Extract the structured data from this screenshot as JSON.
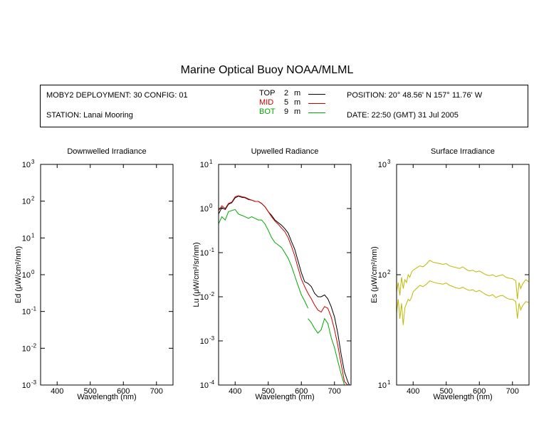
{
  "title": "Marine Optical Buoy NOAA/MLML",
  "info": {
    "deployment": "MOBY2 DEPLOYMENT: 30 CONFIG: 01",
    "station": "STATION: Lanai Mooring",
    "position": "POSITION: 20° 48.56' N   157° 11.76' W",
    "date": "DATE: 22:50 (GMT) 31 Jul 2005",
    "legend": [
      {
        "name": "TOP",
        "depth": "2",
        "unit": "m",
        "color": "#000000"
      },
      {
        "name": "MID",
        "depth": "5",
        "unit": "m",
        "color": "#cc0000"
      },
      {
        "name": "BOT",
        "depth": "9",
        "unit": "m",
        "color": "#00aa00"
      }
    ]
  },
  "chart_data": [
    {
      "type": "line",
      "title": "Downwelled Irradiance",
      "xlabel": "Wavelength (nm)",
      "ylabel": "Ed  (μW/cm²/nm)",
      "xlim": [
        350,
        750
      ],
      "ylim": [
        0.001,
        1000
      ],
      "yscale": "log",
      "xticks": [
        400,
        500,
        600,
        700
      ],
      "yticks": [
        {
          "v": 0.001,
          "base": "10",
          "exp": "-3"
        },
        {
          "v": 0.01,
          "base": "10",
          "exp": "-2"
        },
        {
          "v": 0.1,
          "base": "10",
          "exp": "-1"
        },
        {
          "v": 1,
          "base": "10",
          "exp": "0"
        },
        {
          "v": 10,
          "base": "10",
          "exp": "1"
        },
        {
          "v": 100,
          "base": "10",
          "exp": "2"
        },
        {
          "v": 1000,
          "base": "10",
          "exp": "3"
        }
      ],
      "series": []
    },
    {
      "type": "line",
      "title": "Upwelled Radiance",
      "xlabel": "Wavelength (nm)",
      "ylabel": "Lu  (μW/cm²/sr/nm)",
      "xlim": [
        350,
        750
      ],
      "ylim": [
        0.0001,
        10
      ],
      "yscale": "log",
      "xticks": [
        400,
        500,
        600,
        700
      ],
      "yticks": [
        {
          "v": 0.0001,
          "base": "10",
          "exp": "-4"
        },
        {
          "v": 0.001,
          "base": "10",
          "exp": "-3"
        },
        {
          "v": 0.01,
          "base": "10",
          "exp": "-2"
        },
        {
          "v": 0.1,
          "base": "10",
          "exp": "-1"
        },
        {
          "v": 1,
          "base": "10",
          "exp": "0"
        },
        {
          "v": 10,
          "base": "10",
          "exp": "1"
        }
      ],
      "series": [
        {
          "color": "#000000",
          "x": [
            350,
            360,
            370,
            380,
            390,
            400,
            410,
            420,
            430,
            440,
            450,
            460,
            470,
            480,
            490,
            500,
            510,
            520,
            530,
            540,
            550,
            560,
            570,
            580,
            590,
            600,
            610,
            620,
            630,
            640,
            650,
            660,
            670,
            680,
            690,
            700,
            710,
            720,
            730,
            740,
            745
          ],
          "y": [
            0.75,
            1.05,
            0.95,
            1.25,
            1.35,
            1.75,
            1.9,
            1.8,
            1.75,
            1.6,
            1.55,
            1.45,
            1.45,
            1.3,
            1.1,
            0.85,
            0.7,
            0.55,
            0.48,
            0.42,
            0.35,
            0.28,
            0.18,
            0.12,
            0.065,
            0.035,
            0.022,
            0.02,
            0.017,
            0.012,
            0.01,
            0.01,
            0.011,
            0.009,
            0.006,
            0.0035,
            0.0015,
            0.0005,
            0.0002,
            0.00012,
            0.0001
          ]
        },
        {
          "color": "#cc0000",
          "x": [
            350,
            360,
            370,
            380,
            390,
            400,
            410,
            420,
            430,
            440,
            450,
            460,
            470,
            480,
            490,
            500,
            510,
            520,
            530,
            540,
            550,
            560,
            570,
            580,
            590,
            600,
            610,
            620,
            630,
            640,
            650,
            660,
            670,
            680,
            690,
            700,
            710,
            720,
            730,
            740
          ],
          "y": [
            0.9,
            1.15,
            1.0,
            1.3,
            1.4,
            1.85,
            1.95,
            1.85,
            1.8,
            1.65,
            1.55,
            1.45,
            1.45,
            1.3,
            1.1,
            0.85,
            0.65,
            0.52,
            0.44,
            0.36,
            0.3,
            0.22,
            0.14,
            0.085,
            0.045,
            0.025,
            0.017,
            0.012,
            0.009,
            0.0065,
            0.005,
            0.0045,
            0.006,
            0.0055,
            0.0035,
            0.0018,
            0.0008,
            0.0003,
            0.00012,
            0.0001
          ]
        },
        {
          "color": "#00aa00",
          "x": [
            350,
            360,
            370,
            380,
            390,
            400,
            410,
            420,
            430,
            440,
            450,
            460,
            470,
            480,
            490,
            500,
            510,
            520,
            530,
            540,
            550,
            560,
            570,
            580,
            590,
            600,
            610,
            620
          ],
          "y": [
            0.45,
            0.65,
            0.55,
            0.85,
            0.9,
            0.95,
            0.75,
            0.7,
            0.65,
            0.6,
            0.65,
            0.6,
            0.55,
            0.55,
            0.45,
            0.32,
            0.22,
            0.17,
            0.15,
            0.13,
            0.1,
            0.075,
            0.05,
            0.03,
            0.018,
            0.011,
            0.008,
            0.0055
          ]
        },
        {
          "color": "#00aa00",
          "x": [
            620,
            630,
            640,
            650,
            660,
            670,
            680,
            690,
            700,
            710,
            720,
            730,
            740
          ],
          "y": [
            0.0032,
            0.0026,
            0.0019,
            0.0015,
            0.0018,
            0.0032,
            0.0025,
            0.0012,
            0.0007,
            0.00035,
            0.00018,
            0.0001,
            0.0001
          ]
        }
      ]
    },
    {
      "type": "line",
      "title": "Surface Irradiance",
      "xlabel": "Wavelength (nm)",
      "ylabel": "Es  (μW/cm²/nm)",
      "xlim": [
        350,
        750
      ],
      "ylim": [
        10,
        1000
      ],
      "yscale": "log",
      "xticks": [
        400,
        500,
        600,
        700
      ],
      "yticks": [
        {
          "v": 10,
          "base": "10",
          "exp": "1"
        },
        {
          "v": 100,
          "base": "10",
          "exp": "2"
        },
        {
          "v": 1000,
          "base": "10",
          "exp": "3"
        }
      ],
      "series": [
        {
          "color": "#c0b800",
          "x": [
            350,
            355,
            360,
            365,
            370,
            375,
            380,
            385,
            390,
            395,
            400,
            410,
            420,
            430,
            440,
            450,
            460,
            470,
            480,
            490,
            500,
            510,
            520,
            530,
            540,
            550,
            560,
            570,
            580,
            590,
            600,
            610,
            620,
            630,
            640,
            650,
            660,
            670,
            680,
            690,
            700,
            710,
            715,
            720,
            725,
            730,
            740,
            750
          ],
          "y": [
            70,
            85,
            65,
            95,
            75,
            90,
            85,
            100,
            95,
            105,
            110,
            115,
            120,
            118,
            125,
            135,
            130,
            128,
            126,
            124,
            126,
            120,
            118,
            116,
            114,
            118,
            112,
            108,
            110,
            106,
            108,
            104,
            100,
            98,
            100,
            96,
            98,
            100,
            95,
            93,
            92,
            88,
            60,
            85,
            75,
            82,
            90,
            86
          ]
        },
        {
          "color": "#c0b800",
          "x": [
            350,
            355,
            360,
            365,
            370,
            375,
            380,
            385,
            390,
            395,
            400,
            410,
            420,
            430,
            440,
            450,
            460,
            470,
            480,
            490,
            500,
            510,
            520,
            530,
            540,
            550,
            560,
            570,
            580,
            590,
            600,
            610,
            620,
            630,
            640,
            650,
            660,
            670,
            680,
            690,
            700,
            710,
            715,
            720,
            725,
            730,
            740,
            750
          ],
          "y": [
            45,
            60,
            40,
            55,
            35,
            50,
            55,
            60,
            58,
            62,
            70,
            75,
            80,
            78,
            82,
            88,
            86,
            84,
            83,
            82,
            84,
            80,
            78,
            76,
            75,
            77,
            74,
            72,
            73,
            70,
            72,
            69,
            66,
            64,
            66,
            62,
            64,
            65,
            62,
            60,
            60,
            57,
            40,
            55,
            48,
            52,
            57,
            56
          ]
        }
      ]
    }
  ]
}
